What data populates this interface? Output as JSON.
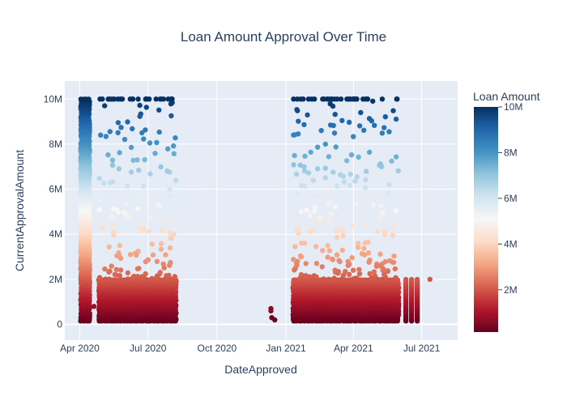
{
  "chart_data": {
    "type": "scatter",
    "title": "Loan Amount Approval Over Time",
    "xlabel": "DateApproved",
    "ylabel": "CurrentApprovalAmount",
    "xlim": [
      "2020-03-12",
      "2021-08-18"
    ],
    "ylim": [
      -700000,
      10800000
    ],
    "x_ticks": [
      {
        "date": "2020-04-01",
        "label": "Apr 2020"
      },
      {
        "date": "2020-07-01",
        "label": "Jul 2020"
      },
      {
        "date": "2020-10-01",
        "label": "Oct 2020"
      },
      {
        "date": "2021-01-01",
        "label": "Jan 2021"
      },
      {
        "date": "2021-04-01",
        "label": "Apr 2021"
      },
      {
        "date": "2021-07-01",
        "label": "Jul 2021"
      }
    ],
    "y_ticks": [
      {
        "value": 0,
        "label": "0"
      },
      {
        "value": 2000000,
        "label": "2M"
      },
      {
        "value": 4000000,
        "label": "4M"
      },
      {
        "value": 6000000,
        "label": "6M"
      },
      {
        "value": 8000000,
        "label": "8M"
      },
      {
        "value": 10000000,
        "label": "10M"
      }
    ],
    "grid": true,
    "colorscale": "RdBu",
    "colorscale_stops": [
      "#67001f",
      "#b2182b",
      "#d6604d",
      "#f4a582",
      "#fddbc7",
      "#f7f7f7",
      "#d1e5f0",
      "#92c5de",
      "#4393c3",
      "#2166ac",
      "#053061"
    ],
    "colorbar": {
      "title": "Loan Amount",
      "range": [
        150000,
        10000000
      ],
      "ticks": [
        {
          "value": 2000000,
          "label": "2M"
        },
        {
          "value": 4000000,
          "label": "4M"
        },
        {
          "value": 6000000,
          "label": "6M"
        },
        {
          "value": 8000000,
          "label": "8M"
        },
        {
          "value": 10000000,
          "label": "10M"
        }
      ]
    },
    "clusters": [
      {
        "start": "2020-04-03",
        "end": "2020-04-16",
        "min": 150000,
        "max": 10000000,
        "density": "solid"
      },
      {
        "start": "2020-04-27",
        "end": "2020-06-30",
        "min": 150000,
        "max": 10000000,
        "density": "solid-low"
      },
      {
        "start": "2020-07-01",
        "end": "2020-08-08",
        "min": 150000,
        "max": 10000000,
        "density": "solid-low"
      },
      {
        "start": "2021-01-11",
        "end": "2021-05-31",
        "min": 150000,
        "max": 10000000,
        "density": "solid-low"
      },
      {
        "start": "2021-06-10",
        "end": "2021-06-30",
        "min": 150000,
        "max": 2000000,
        "density": "sparse"
      }
    ],
    "points": [
      {
        "x": "2020-12-12",
        "y": 700000
      },
      {
        "x": "2020-12-12",
        "y": 600000
      },
      {
        "x": "2020-12-13",
        "y": 300000
      },
      {
        "x": "2020-12-17",
        "y": 200000
      },
      {
        "x": "2021-07-12",
        "y": 2000000
      },
      {
        "x": "2020-04-20",
        "y": 800000
      }
    ]
  }
}
